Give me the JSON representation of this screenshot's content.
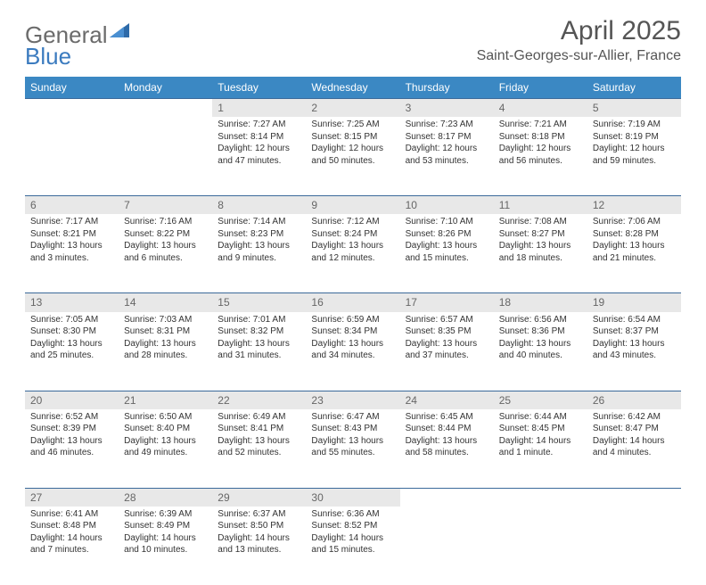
{
  "brand": {
    "part1": "General",
    "part2": "Blue"
  },
  "title": "April 2025",
  "location": "Saint-Georges-sur-Allier, France",
  "colors": {
    "header_bg": "#3b88c3",
    "daynum_bg": "#e8e8e8",
    "border": "#3b6a9a",
    "logo_gray": "#6b6b6b",
    "logo_blue": "#3b7bbf"
  },
  "weekdays": [
    "Sunday",
    "Monday",
    "Tuesday",
    "Wednesday",
    "Thursday",
    "Friday",
    "Saturday"
  ],
  "weeks": [
    [
      null,
      null,
      {
        "n": "1",
        "sr": "7:27 AM",
        "ss": "8:14 PM",
        "dl": "12 hours and 47 minutes."
      },
      {
        "n": "2",
        "sr": "7:25 AM",
        "ss": "8:15 PM",
        "dl": "12 hours and 50 minutes."
      },
      {
        "n": "3",
        "sr": "7:23 AM",
        "ss": "8:17 PM",
        "dl": "12 hours and 53 minutes."
      },
      {
        "n": "4",
        "sr": "7:21 AM",
        "ss": "8:18 PM",
        "dl": "12 hours and 56 minutes."
      },
      {
        "n": "5",
        "sr": "7:19 AM",
        "ss": "8:19 PM",
        "dl": "12 hours and 59 minutes."
      }
    ],
    [
      {
        "n": "6",
        "sr": "7:17 AM",
        "ss": "8:21 PM",
        "dl": "13 hours and 3 minutes."
      },
      {
        "n": "7",
        "sr": "7:16 AM",
        "ss": "8:22 PM",
        "dl": "13 hours and 6 minutes."
      },
      {
        "n": "8",
        "sr": "7:14 AM",
        "ss": "8:23 PM",
        "dl": "13 hours and 9 minutes."
      },
      {
        "n": "9",
        "sr": "7:12 AM",
        "ss": "8:24 PM",
        "dl": "13 hours and 12 minutes."
      },
      {
        "n": "10",
        "sr": "7:10 AM",
        "ss": "8:26 PM",
        "dl": "13 hours and 15 minutes."
      },
      {
        "n": "11",
        "sr": "7:08 AM",
        "ss": "8:27 PM",
        "dl": "13 hours and 18 minutes."
      },
      {
        "n": "12",
        "sr": "7:06 AM",
        "ss": "8:28 PM",
        "dl": "13 hours and 21 minutes."
      }
    ],
    [
      {
        "n": "13",
        "sr": "7:05 AM",
        "ss": "8:30 PM",
        "dl": "13 hours and 25 minutes."
      },
      {
        "n": "14",
        "sr": "7:03 AM",
        "ss": "8:31 PM",
        "dl": "13 hours and 28 minutes."
      },
      {
        "n": "15",
        "sr": "7:01 AM",
        "ss": "8:32 PM",
        "dl": "13 hours and 31 minutes."
      },
      {
        "n": "16",
        "sr": "6:59 AM",
        "ss": "8:34 PM",
        "dl": "13 hours and 34 minutes."
      },
      {
        "n": "17",
        "sr": "6:57 AM",
        "ss": "8:35 PM",
        "dl": "13 hours and 37 minutes."
      },
      {
        "n": "18",
        "sr": "6:56 AM",
        "ss": "8:36 PM",
        "dl": "13 hours and 40 minutes."
      },
      {
        "n": "19",
        "sr": "6:54 AM",
        "ss": "8:37 PM",
        "dl": "13 hours and 43 minutes."
      }
    ],
    [
      {
        "n": "20",
        "sr": "6:52 AM",
        "ss": "8:39 PM",
        "dl": "13 hours and 46 minutes."
      },
      {
        "n": "21",
        "sr": "6:50 AM",
        "ss": "8:40 PM",
        "dl": "13 hours and 49 minutes."
      },
      {
        "n": "22",
        "sr": "6:49 AM",
        "ss": "8:41 PM",
        "dl": "13 hours and 52 minutes."
      },
      {
        "n": "23",
        "sr": "6:47 AM",
        "ss": "8:43 PM",
        "dl": "13 hours and 55 minutes."
      },
      {
        "n": "24",
        "sr": "6:45 AM",
        "ss": "8:44 PM",
        "dl": "13 hours and 58 minutes."
      },
      {
        "n": "25",
        "sr": "6:44 AM",
        "ss": "8:45 PM",
        "dl": "14 hours and 1 minute."
      },
      {
        "n": "26",
        "sr": "6:42 AM",
        "ss": "8:47 PM",
        "dl": "14 hours and 4 minutes."
      }
    ],
    [
      {
        "n": "27",
        "sr": "6:41 AM",
        "ss": "8:48 PM",
        "dl": "14 hours and 7 minutes."
      },
      {
        "n": "28",
        "sr": "6:39 AM",
        "ss": "8:49 PM",
        "dl": "14 hours and 10 minutes."
      },
      {
        "n": "29",
        "sr": "6:37 AM",
        "ss": "8:50 PM",
        "dl": "14 hours and 13 minutes."
      },
      {
        "n": "30",
        "sr": "6:36 AM",
        "ss": "8:52 PM",
        "dl": "14 hours and 15 minutes."
      },
      null,
      null,
      null
    ]
  ],
  "labels": {
    "sunrise": "Sunrise:",
    "sunset": "Sunset:",
    "daylight": "Daylight:"
  }
}
